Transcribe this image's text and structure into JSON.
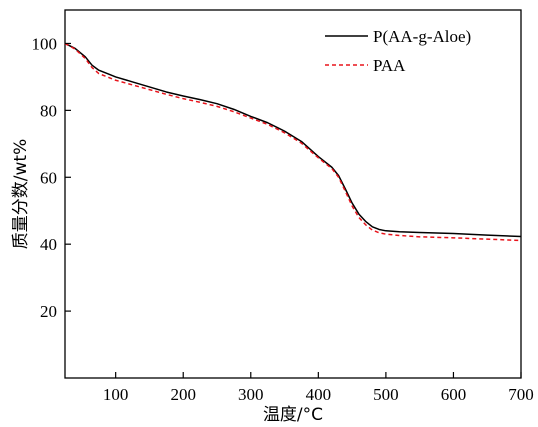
{
  "chart_data": {
    "type": "line",
    "title": "",
    "xlabel": "温度/°C",
    "ylabel": "质量分数/wt%",
    "xlim": [
      25,
      700
    ],
    "ylim": [
      0,
      110
    ],
    "xticks": [
      100,
      200,
      300,
      400,
      500,
      600,
      700
    ],
    "yticks": [
      20,
      40,
      60,
      80,
      100
    ],
    "grid": false,
    "legend_position": "top-right",
    "series": [
      {
        "name": "P(AA-g-Aloe)",
        "color": "#000000",
        "dash": "solid",
        "x": [
          25,
          40,
          55,
          65,
          75,
          90,
          100,
          125,
          150,
          175,
          200,
          225,
          250,
          275,
          300,
          325,
          350,
          375,
          400,
          420,
          430,
          440,
          450,
          460,
          470,
          480,
          490,
          500,
          520,
          550,
          600,
          650,
          700
        ],
        "y": [
          100,
          98.5,
          96,
          93.5,
          92,
          90.8,
          90,
          88.5,
          87,
          85.5,
          84.3,
          83.2,
          82,
          80.3,
          78.2,
          76.3,
          73.8,
          70.7,
          66.2,
          63,
          60.5,
          56.5,
          52.3,
          49,
          46.8,
          45.2,
          44.4,
          44,
          43.7,
          43.5,
          43.2,
          42.7,
          42.3
        ]
      },
      {
        "name": "PAA",
        "color": "#e8141c",
        "dash": "dashed",
        "x": [
          25,
          40,
          55,
          65,
          75,
          90,
          100,
          125,
          150,
          175,
          200,
          225,
          250,
          275,
          300,
          325,
          350,
          375,
          400,
          420,
          430,
          440,
          450,
          460,
          470,
          480,
          490,
          500,
          520,
          550,
          600,
          650,
          700
        ],
        "y": [
          100,
          98.3,
          95.5,
          92.8,
          91,
          89.8,
          89,
          87.6,
          86.2,
          84.8,
          83.5,
          82.4,
          81.2,
          79.6,
          77.7,
          75.8,
          73.3,
          70.2,
          65.8,
          62.6,
          60,
          55.8,
          51.4,
          48,
          45.8,
          44.2,
          43.4,
          43,
          42.6,
          42.2,
          41.9,
          41.5,
          41.1
        ]
      }
    ]
  }
}
